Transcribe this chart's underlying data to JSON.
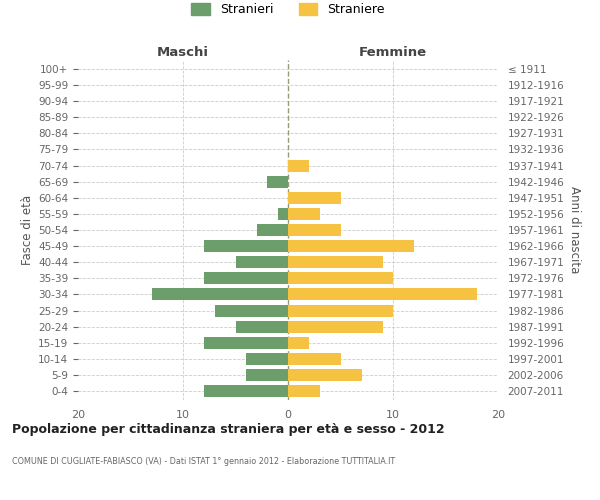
{
  "age_groups": [
    "0-4",
    "5-9",
    "10-14",
    "15-19",
    "20-24",
    "25-29",
    "30-34",
    "35-39",
    "40-44",
    "45-49",
    "50-54",
    "55-59",
    "60-64",
    "65-69",
    "70-74",
    "75-79",
    "80-84",
    "85-89",
    "90-94",
    "95-99",
    "100+"
  ],
  "birth_years": [
    "2007-2011",
    "2002-2006",
    "1997-2001",
    "1992-1996",
    "1987-1991",
    "1982-1986",
    "1977-1981",
    "1972-1976",
    "1967-1971",
    "1962-1966",
    "1957-1961",
    "1952-1956",
    "1947-1951",
    "1942-1946",
    "1937-1941",
    "1932-1936",
    "1927-1931",
    "1922-1926",
    "1917-1921",
    "1912-1916",
    "≤ 1911"
  ],
  "males": [
    8,
    4,
    4,
    8,
    5,
    7,
    13,
    8,
    5,
    8,
    3,
    1,
    0,
    2,
    0,
    0,
    0,
    0,
    0,
    0,
    0
  ],
  "females": [
    3,
    7,
    5,
    2,
    9,
    10,
    18,
    10,
    9,
    12,
    5,
    3,
    5,
    0,
    2,
    0,
    0,
    0,
    0,
    0,
    0
  ],
  "male_color": "#6b9e6b",
  "female_color": "#f5c242",
  "male_label": "Stranieri",
  "female_label": "Straniere",
  "title": "Popolazione per cittadinanza straniera per età e sesso - 2012",
  "subtitle": "COMUNE DI CUGLIATE-FABIASCO (VA) - Dati ISTAT 1° gennaio 2012 - Elaborazione TUTTITALIA.IT",
  "xlabel_left": "Maschi",
  "xlabel_right": "Femmine",
  "ylabel_left": "Fasce di età",
  "ylabel_right": "Anni di nascita",
  "xlim": 20,
  "xticks": [
    -20,
    -10,
    0,
    10,
    20
  ],
  "xtick_labels": [
    "20",
    "10",
    "0",
    "10",
    "20"
  ],
  "background_color": "#ffffff",
  "grid_color": "#cccccc",
  "bar_height": 0.75
}
